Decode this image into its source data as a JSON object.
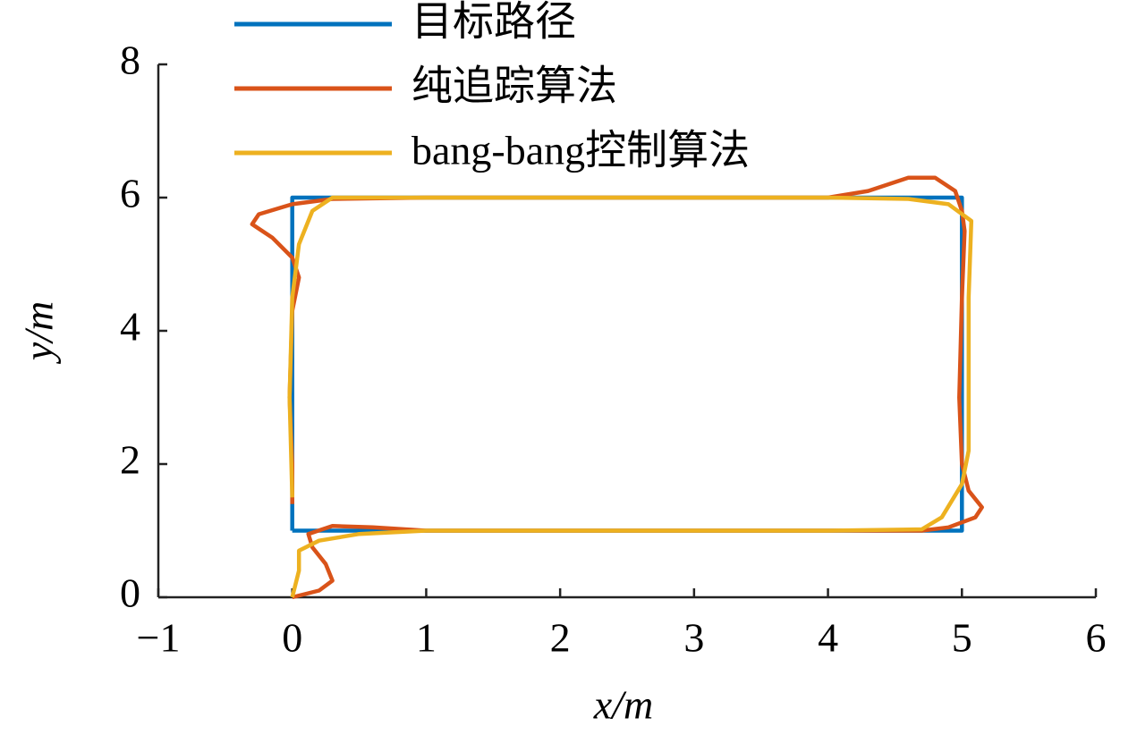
{
  "chart_data": {
    "type": "line",
    "xlabel": "x/m",
    "ylabel": "y/m",
    "xlim": [
      -1,
      6
    ],
    "ylim": [
      0,
      8
    ],
    "xticks": [
      {
        "value": -1,
        "label": "−1"
      },
      0,
      1,
      2,
      3,
      4,
      5,
      6
    ],
    "yticks": [
      0,
      2,
      4,
      6,
      8
    ],
    "legend": "top-left",
    "series": [
      {
        "name": "目标路径",
        "color": "#0072bd",
        "x": [
          0,
          0,
          5,
          5,
          0
        ],
        "values": [
          1,
          6,
          6,
          1,
          1
        ]
      },
      {
        "name": "纯追踪算法",
        "color": "#d95319",
        "x": [
          0,
          0.2,
          0.3,
          0.25,
          0.15,
          0.12,
          0.3,
          0.6,
          1,
          2,
          3,
          4,
          4.7,
          4.9,
          5.1,
          5.15,
          5.05,
          5.0,
          4.98,
          5.0,
          5.02,
          5.0,
          4.95,
          4.8,
          4.6,
          4.3,
          4.0,
          3,
          2,
          1,
          0.3,
          0,
          -0.25,
          -0.3,
          -0.15,
          0,
          0.05,
          0,
          -0.02,
          0,
          0
        ],
        "values": [
          0,
          0.1,
          0.25,
          0.5,
          0.75,
          0.95,
          1.07,
          1.05,
          1.0,
          1.0,
          1.0,
          1.0,
          1.0,
          1.05,
          1.2,
          1.35,
          1.6,
          2.0,
          3,
          4.5,
          5.5,
          5.8,
          6.1,
          6.3,
          6.3,
          6.1,
          6.0,
          6.0,
          6.0,
          6.0,
          5.98,
          5.9,
          5.75,
          5.6,
          5.4,
          5.1,
          4.8,
          4.3,
          3,
          2,
          1.4
        ]
      },
      {
        "name": "bang-bang控制算法",
        "color": "#edb120",
        "x": [
          0,
          0.05,
          0.05,
          0.2,
          0.5,
          1,
          2,
          3,
          4,
          4.7,
          4.85,
          5.0,
          5.05,
          5.05,
          5.05,
          5.07,
          4.9,
          4.6,
          4,
          3,
          2,
          1,
          0.3,
          0.15,
          0.05,
          0,
          -0.02,
          0
        ],
        "values": [
          0,
          0.4,
          0.7,
          0.85,
          0.95,
          1.0,
          1.0,
          1.0,
          1.0,
          1.02,
          1.2,
          1.7,
          2.2,
          3,
          4.5,
          5.65,
          5.9,
          5.98,
          6.0,
          6.0,
          6.0,
          6.0,
          6.0,
          5.8,
          5.3,
          4.5,
          3,
          1.5
        ]
      }
    ]
  }
}
